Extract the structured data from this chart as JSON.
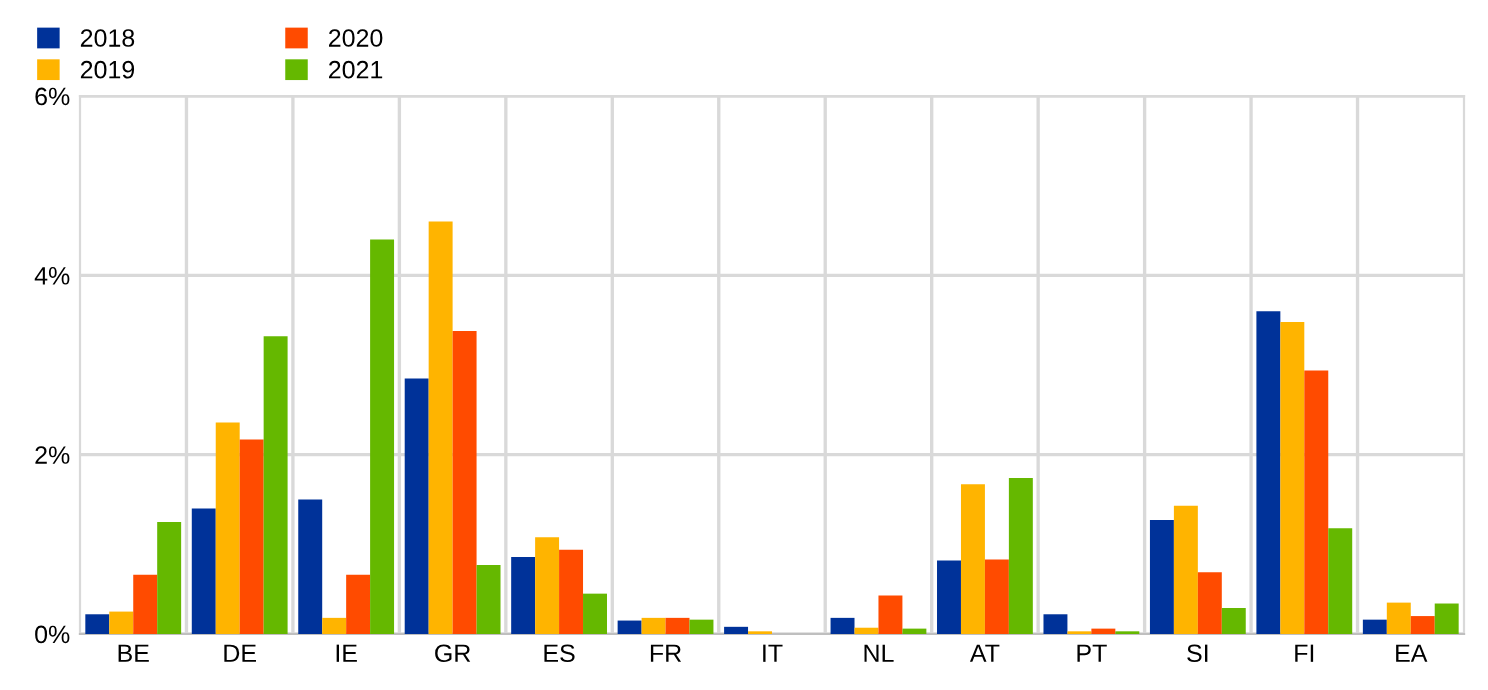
{
  "chart_data": {
    "type": "bar",
    "categories": [
      "BE",
      "DE",
      "IE",
      "GR",
      "ES",
      "FR",
      "IT",
      "NL",
      "AT",
      "PT",
      "SI",
      "FI",
      "EA"
    ],
    "series": [
      {
        "name": "2018",
        "color": "#003299",
        "values": [
          0.22,
          1.4,
          1.5,
          2.85,
          0.86,
          0.15,
          0.08,
          0.18,
          0.82,
          0.22,
          1.27,
          3.6,
          0.16
        ]
      },
      {
        "name": "2019",
        "color": "#ffb400",
        "values": [
          0.25,
          2.36,
          0.18,
          4.6,
          1.08,
          0.18,
          0.03,
          0.07,
          1.67,
          0.03,
          1.43,
          3.48,
          0.35
        ]
      },
      {
        "name": "2020",
        "color": "#ff4b00",
        "values": [
          0.66,
          2.17,
          0.66,
          3.38,
          0.94,
          0.18,
          0,
          0.43,
          0.83,
          0.06,
          0.69,
          2.94,
          0.2
        ]
      },
      {
        "name": "2021",
        "color": "#65b800",
        "values": [
          1.25,
          3.32,
          4.4,
          0.77,
          0.45,
          0.16,
          0,
          0.06,
          1.74,
          0.03,
          0.29,
          1.18,
          0.34
        ]
      }
    ],
    "ylim": [
      0,
      6
    ],
    "yticks": [
      {
        "value": 0,
        "label": "0%"
      },
      {
        "value": 2,
        "label": "2%"
      },
      {
        "value": 4,
        "label": "4%"
      },
      {
        "value": 6,
        "label": "6%"
      }
    ],
    "grid": true,
    "legend": "top left"
  }
}
